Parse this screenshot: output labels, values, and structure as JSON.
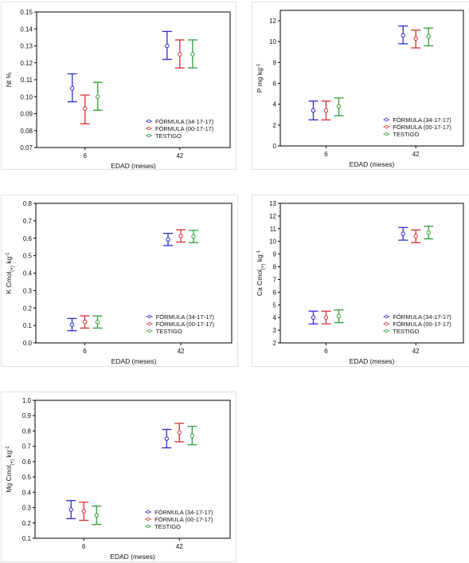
{
  "series_colors": [
    "#2b2bd6",
    "#d63030",
    "#2e9e3a"
  ],
  "chart_data": [
    {
      "type": "scatter",
      "error_bars": true,
      "xlabel": "EDAD (meses)",
      "ylabel": "Nt %",
      "ylabel_sub": "",
      "ylabel_sup": "",
      "categories": [
        "6",
        "42"
      ],
      "ylim": [
        0.07,
        0.15
      ],
      "yticks": [
        "0.07",
        "0.08",
        "0.09",
        "0.10",
        "0.11",
        "0.12",
        "0.13",
        "0.14",
        "0.15"
      ],
      "series": [
        {
          "name": "FÓRMULA (34-17-17)",
          "values": [
            0.105,
            0.13
          ],
          "lower": [
            0.097,
            0.122
          ],
          "upper": [
            0.1135,
            0.1385
          ]
        },
        {
          "name": "FÓRMULA (00-17-17)",
          "values": [
            0.093,
            0.125
          ],
          "lower": [
            0.084,
            0.117
          ],
          "upper": [
            0.101,
            0.1335
          ]
        },
        {
          "name": "TESTIGO",
          "values": [
            0.1,
            0.125
          ],
          "lower": [
            0.092,
            0.117
          ],
          "upper": [
            0.1085,
            0.1335
          ]
        }
      ]
    },
    {
      "type": "scatter",
      "error_bars": true,
      "xlabel": "EDAD (meses)",
      "ylabel": "P mg kg",
      "ylabel_sub": "",
      "ylabel_sup": "-1",
      "categories": [
        "6",
        "42"
      ],
      "ylim": [
        0,
        13
      ],
      "yticks": [
        "0",
        "2",
        "4",
        "6",
        "8",
        "10",
        "12"
      ],
      "series": [
        {
          "name": "FÓRMULA (34-17-17)",
          "values": [
            3.4,
            10.6
          ],
          "lower": [
            2.5,
            9.8
          ],
          "upper": [
            4.3,
            11.5
          ]
        },
        {
          "name": "FÓRMULA (00-17-17)",
          "values": [
            3.4,
            10.3
          ],
          "lower": [
            2.5,
            9.4
          ],
          "upper": [
            4.3,
            11.1
          ]
        },
        {
          "name": "TESTIGO",
          "values": [
            3.8,
            10.5
          ],
          "lower": [
            2.9,
            9.6
          ],
          "upper": [
            4.6,
            11.3
          ]
        }
      ]
    },
    {
      "type": "scatter",
      "error_bars": true,
      "xlabel": "EDAD (meses)",
      "ylabel": "K Cmol",
      "ylabel_sub": "(+)",
      "ylabel_sup": "-1",
      "ylabel_unit": " kg",
      "categories": [
        "6",
        "42"
      ],
      "ylim": [
        0,
        0.8
      ],
      "yticks": [
        "0.0",
        "0.1",
        "0.2",
        "0.3",
        "0.4",
        "0.5",
        "0.6",
        "0.7",
        "0.8"
      ],
      "series": [
        {
          "name": "FÓRMULA (34-17-17)",
          "values": [
            0.105,
            0.593
          ],
          "lower": [
            0.07,
            0.558
          ],
          "upper": [
            0.14,
            0.628
          ]
        },
        {
          "name": "FÓRMULA (00-17-17)",
          "values": [
            0.12,
            0.613
          ],
          "lower": [
            0.085,
            0.578
          ],
          "upper": [
            0.155,
            0.648
          ]
        },
        {
          "name": "TESTIGO",
          "values": [
            0.12,
            0.61
          ],
          "lower": [
            0.085,
            0.575
          ],
          "upper": [
            0.155,
            0.645
          ]
        }
      ]
    },
    {
      "type": "scatter",
      "error_bars": true,
      "xlabel": "EDAD (meses)",
      "ylabel": "Ca Cmol",
      "ylabel_sub": "(+)",
      "ylabel_sup": "-1",
      "ylabel_unit": " kg",
      "categories": [
        "6",
        "42"
      ],
      "ylim": [
        2,
        13
      ],
      "yticks": [
        "2",
        "3",
        "4",
        "5",
        "6",
        "7",
        "8",
        "9",
        "10",
        "11",
        "12",
        "13"
      ],
      "series": [
        {
          "name": "FÓRMULA (34-17-17)",
          "values": [
            4.0,
            10.6
          ],
          "lower": [
            3.5,
            10.1
          ],
          "upper": [
            4.5,
            11.1
          ]
        },
        {
          "name": "FÓRMULA (00-17-17)",
          "values": [
            4.0,
            10.4
          ],
          "lower": [
            3.5,
            9.9
          ],
          "upper": [
            4.5,
            10.9
          ]
        },
        {
          "name": "TESTIGO",
          "values": [
            4.1,
            10.7
          ],
          "lower": [
            3.6,
            10.2
          ],
          "upper": [
            4.6,
            11.2
          ]
        }
      ]
    },
    {
      "type": "scatter",
      "error_bars": true,
      "xlabel": "EDAD (meses)",
      "ylabel": "Mg Cmol",
      "ylabel_sub": "(+)",
      "ylabel_sup": "-1",
      "ylabel_unit": " kg",
      "categories": [
        "6",
        "42"
      ],
      "ylim": [
        0.1,
        1.0
      ],
      "yticks": [
        "0.1",
        "0.2",
        "0.3",
        "0.4",
        "0.5",
        "0.6",
        "0.7",
        "0.8",
        "0.9",
        "1.0"
      ],
      "series": [
        {
          "name": "FÓRMULA (34-17-17)",
          "values": [
            0.287,
            0.75
          ],
          "lower": [
            0.228,
            0.69
          ],
          "upper": [
            0.346,
            0.81
          ]
        },
        {
          "name": "FÓRMULA (00-17-17)",
          "values": [
            0.276,
            0.79
          ],
          "lower": [
            0.217,
            0.73
          ],
          "upper": [
            0.335,
            0.85
          ]
        },
        {
          "name": "TESTIGO",
          "values": [
            0.25,
            0.77
          ],
          "lower": [
            0.19,
            0.71
          ],
          "upper": [
            0.31,
            0.83
          ]
        }
      ]
    }
  ]
}
